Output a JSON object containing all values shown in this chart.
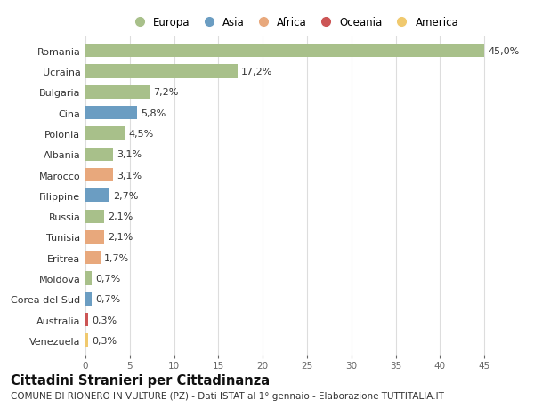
{
  "countries": [
    "Romania",
    "Ucraina",
    "Bulgaria",
    "Cina",
    "Polonia",
    "Albania",
    "Marocco",
    "Filippine",
    "Russia",
    "Tunisia",
    "Eritrea",
    "Moldova",
    "Corea del Sud",
    "Australia",
    "Venezuela"
  ],
  "values": [
    45.0,
    17.2,
    7.2,
    5.8,
    4.5,
    3.1,
    3.1,
    2.7,
    2.1,
    2.1,
    1.7,
    0.7,
    0.7,
    0.3,
    0.3
  ],
  "labels": [
    "45,0%",
    "17,2%",
    "7,2%",
    "5,8%",
    "4,5%",
    "3,1%",
    "3,1%",
    "2,7%",
    "2,1%",
    "2,1%",
    "1,7%",
    "0,7%",
    "0,7%",
    "0,3%",
    "0,3%"
  ],
  "continents": [
    "Europa",
    "Europa",
    "Europa",
    "Asia",
    "Europa",
    "Europa",
    "Africa",
    "Asia",
    "Europa",
    "Africa",
    "Africa",
    "Europa",
    "Asia",
    "Oceania",
    "America"
  ],
  "continent_colors": {
    "Europa": "#a8c08a",
    "Asia": "#6b9dc2",
    "Africa": "#e8a87c",
    "Oceania": "#cc5555",
    "America": "#f0c96e"
  },
  "legend_order": [
    "Europa",
    "Asia",
    "Africa",
    "Oceania",
    "America"
  ],
  "xlim": [
    0,
    47
  ],
  "xticks": [
    0,
    5,
    10,
    15,
    20,
    25,
    30,
    35,
    40,
    45
  ],
  "title": "Cittadini Stranieri per Cittadinanza",
  "subtitle": "COMUNE DI RIONERO IN VULTURE (PZ) - Dati ISTAT al 1° gennaio - Elaborazione TUTTITALIA.IT",
  "background_color": "#ffffff",
  "grid_color": "#dddddd",
  "bar_height": 0.65,
  "label_fontsize": 8.0,
  "tick_fontsize": 7.5,
  "legend_fontsize": 8.5,
  "title_fontsize": 10.5,
  "subtitle_fontsize": 7.5
}
